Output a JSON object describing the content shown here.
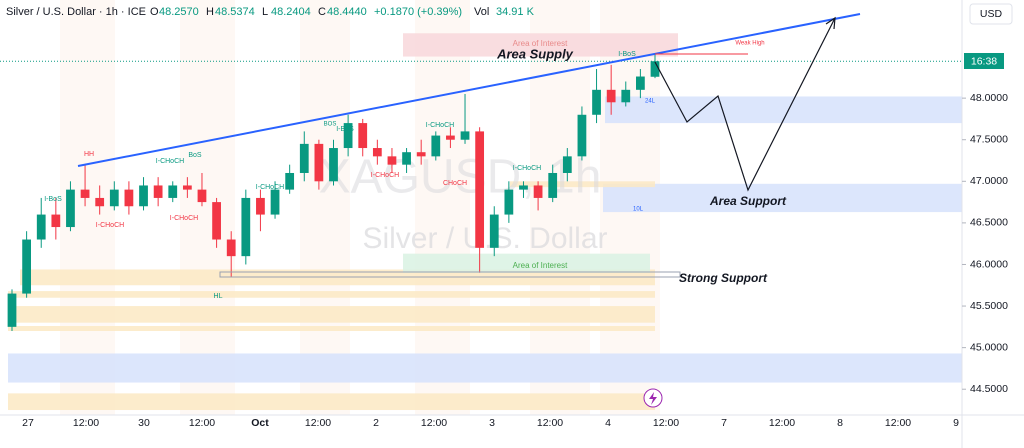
{
  "chart_data": {
    "type": "candlestick",
    "symbol": "Silver / U.S. Dollar · 1h · ICE",
    "legend": [
      {
        "key": "O",
        "value": "48.2570"
      },
      {
        "key": "H",
        "value": "48.5374"
      },
      {
        "key": "L",
        "value": "48.2404"
      },
      {
        "key": "C",
        "value": "48.4440"
      }
    ],
    "change": "+0.1870 (+0.39%)",
    "volume_key": "Vol",
    "volume": "34.91 K",
    "currency": "USD",
    "countdown": "16:38",
    "watermark": "XAGUSD, 1h",
    "watermark_sub": "Silver / U.S. Dollar",
    "up_color": "#089981",
    "down_color": "#f23645",
    "ylim": [
      44.19,
      49.18
    ],
    "yticks": [
      {
        "value": 44.5,
        "label": "44.5000"
      },
      {
        "value": 45,
        "label": "45.0000"
      },
      {
        "value": 45.5,
        "label": "45.5000"
      },
      {
        "value": 46,
        "label": "46.0000"
      },
      {
        "value": 46.5,
        "label": "46.5000"
      },
      {
        "value": 47,
        "label": "47.0000"
      },
      {
        "value": 47.5,
        "label": "47.5000"
      },
      {
        "value": 48,
        "label": "48.0000"
      }
    ],
    "time_labels": [
      "27",
      "12:00",
      "30",
      "12:00",
      "Oct",
      "12:00",
      "2",
      "12:00",
      "3",
      "12:00",
      "4",
      "12:00",
      "7",
      "12:00",
      "8",
      "12:00",
      "9"
    ],
    "candles": [
      [
        45.25,
        45.7,
        45.2,
        45.65
      ],
      [
        45.65,
        46.4,
        45.6,
        46.3
      ],
      [
        46.3,
        46.8,
        46.2,
        46.6
      ],
      [
        46.6,
        46.8,
        46.3,
        46.45
      ],
      [
        46.45,
        47.0,
        46.4,
        46.9
      ],
      [
        46.9,
        47.2,
        46.7,
        46.8
      ],
      [
        46.8,
        46.95,
        46.6,
        46.7
      ],
      [
        46.7,
        47.0,
        46.65,
        46.9
      ],
      [
        46.9,
        47.0,
        46.6,
        46.7
      ],
      [
        46.7,
        47.05,
        46.65,
        46.95
      ],
      [
        46.95,
        47.05,
        46.7,
        46.8
      ],
      [
        46.8,
        47.0,
        46.75,
        46.95
      ],
      [
        46.95,
        47.05,
        46.8,
        46.9
      ],
      [
        46.9,
        47.1,
        46.7,
        46.75
      ],
      [
        46.75,
        46.8,
        46.2,
        46.3
      ],
      [
        46.3,
        46.4,
        45.85,
        46.1
      ],
      [
        46.1,
        46.9,
        46.0,
        46.8
      ],
      [
        46.8,
        46.9,
        46.4,
        46.6
      ],
      [
        46.6,
        47.0,
        46.55,
        46.9
      ],
      [
        46.9,
        47.2,
        46.85,
        47.1
      ],
      [
        47.1,
        47.6,
        47.0,
        47.45
      ],
      [
        47.45,
        47.5,
        46.9,
        47.0
      ],
      [
        47.0,
        47.5,
        46.95,
        47.4
      ],
      [
        47.4,
        47.8,
        47.3,
        47.7
      ],
      [
        47.7,
        47.75,
        47.3,
        47.4
      ],
      [
        47.4,
        47.5,
        47.2,
        47.3
      ],
      [
        47.3,
        47.4,
        47.1,
        47.2
      ],
      [
        47.2,
        47.4,
        47.1,
        47.35
      ],
      [
        47.35,
        47.5,
        47.2,
        47.3
      ],
      [
        47.3,
        47.6,
        47.25,
        47.55
      ],
      [
        47.55,
        47.65,
        47.4,
        47.5
      ],
      [
        47.5,
        48.05,
        47.45,
        47.6
      ],
      [
        47.6,
        47.65,
        45.9,
        46.2
      ],
      [
        46.2,
        46.7,
        46.1,
        46.6
      ],
      [
        46.6,
        47.0,
        46.5,
        46.9
      ],
      [
        46.9,
        47.0,
        46.8,
        46.95
      ],
      [
        46.95,
        47.0,
        46.65,
        46.8
      ],
      [
        46.8,
        47.2,
        46.75,
        47.1
      ],
      [
        47.1,
        47.4,
        47.0,
        47.3
      ],
      [
        47.3,
        47.9,
        47.25,
        47.8
      ],
      [
        47.8,
        48.35,
        47.7,
        48.1
      ],
      [
        48.1,
        48.4,
        47.8,
        47.95
      ],
      [
        47.95,
        48.2,
        47.9,
        48.1
      ],
      [
        48.1,
        48.35,
        48.0,
        48.26
      ],
      [
        48.257,
        48.5374,
        48.2404,
        48.444
      ]
    ],
    "zones": [
      {
        "low": 48.5,
        "high": 48.78,
        "color": "#f8d7da"
      },
      {
        "low": 47.7,
        "high": 48.02,
        "color": "#d6e2fb"
      },
      {
        "low": 46.63,
        "high": 46.97,
        "color": "#d6e2fb"
      },
      {
        "low": 44.58,
        "high": 44.93,
        "color": "#d6e2fb"
      },
      {
        "low": 45.75,
        "high": 45.94,
        "color": "#fbe9c3"
      },
      {
        "low": 45.6,
        "high": 45.68,
        "color": "#fbe9c3"
      },
      {
        "low": 45.3,
        "high": 45.5,
        "color": "#fbe9c3"
      },
      {
        "low": 45.2,
        "high": 45.26,
        "color": "#fbe9c3"
      },
      {
        "low": 44.25,
        "high": 44.45,
        "color": "#fbe9c3"
      },
      {
        "low": 45.9,
        "high": 46.13,
        "color": "#d9f2e3"
      },
      {
        "low": 46.93,
        "high": 47.0,
        "color": "#fbe9c3"
      }
    ],
    "annotations": [
      {
        "text": "Area Supply",
        "color": "#131722"
      },
      {
        "text": "Area Support",
        "color": "#131722"
      },
      {
        "text": "Strong Support",
        "color": "#131722"
      },
      {
        "text": "Area of Interest",
        "color": "#e88a8a"
      },
      {
        "text": "Area of Interest",
        "color": "#4caf50"
      },
      {
        "text": "Weak High",
        "color": "#f23645"
      },
      {
        "text": "HH",
        "color": "#f23645"
      },
      {
        "text": "I-BoS",
        "color": "#089981"
      },
      {
        "text": "I-CHoCH",
        "color": "#f23645"
      },
      {
        "text": "I-CHoCH",
        "color": "#089981"
      },
      {
        "text": "BoS",
        "color": "#089981"
      },
      {
        "text": "I-CHoCH",
        "color": "#f23645"
      },
      {
        "text": "I-CHoCH",
        "color": "#089981"
      },
      {
        "text": "I-BoS",
        "color": "#089981"
      },
      {
        "text": "BOS",
        "color": "#089981"
      },
      {
        "text": "I-CHoCH",
        "color": "#f23645"
      },
      {
        "text": "I-CHoCH",
        "color": "#089981"
      },
      {
        "text": "CHoCH",
        "color": "#f23645"
      },
      {
        "text": "I-CHoCH",
        "color": "#089981"
      },
      {
        "text": "I-BoS",
        "color": "#089981"
      },
      {
        "text": "HL",
        "color": "#089981"
      },
      {
        "text": "24L",
        "color": "#2962ff"
      },
      {
        "text": "10L",
        "color": "#2962ff"
      }
    ]
  }
}
